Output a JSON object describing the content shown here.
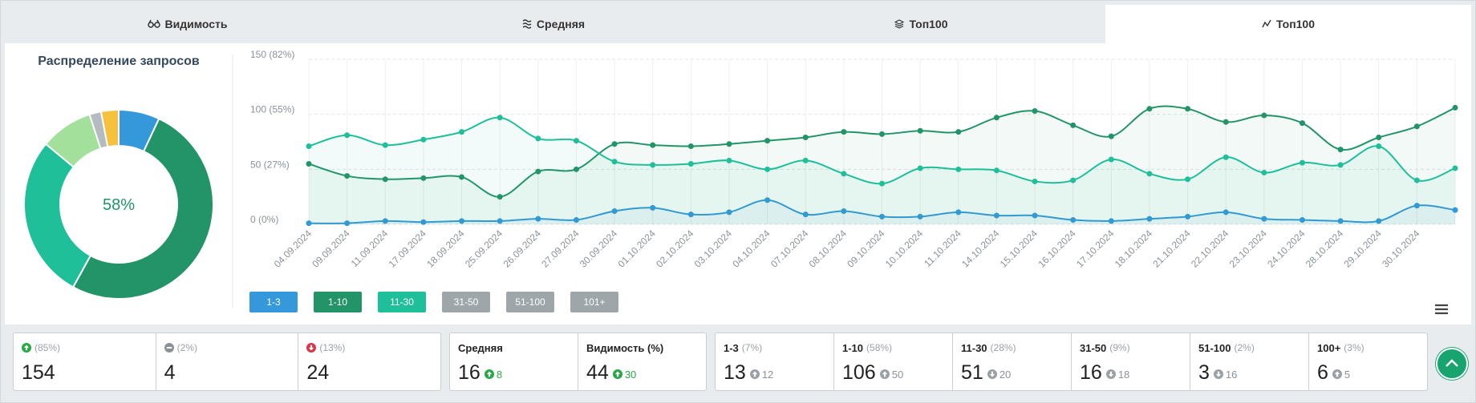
{
  "tabs": [
    "Видимость",
    "Средняя",
    "Топ100",
    "Топ100"
  ],
  "chart_data": [
    {
      "type": "donut",
      "title": "Распределение запросов",
      "center_label": "58%",
      "values": [
        7,
        51,
        28,
        9,
        2,
        3
      ],
      "colors": [
        "#3498db",
        "#229467",
        "#1fbf99",
        "#a3e09c",
        "#b4bcbf",
        "#f6c23e"
      ]
    },
    {
      "type": "line",
      "categories": [
        "04.09.2024",
        "09.09.2024",
        "11.09.2024",
        "17.09.2024",
        "18.09.2024",
        "25.09.2024",
        "26.09.2024",
        "27.09.2024",
        "30.09.2024",
        "01.10.2024",
        "02.10.2024",
        "03.10.2024",
        "04.10.2024",
        "07.10.2024",
        "08.10.2024",
        "09.10.2024",
        "10.10.2024",
        "11.10.2024",
        "14.10.2024",
        "15.10.2024",
        "16.10.2024",
        "17.10.2024",
        "18.10.2024",
        "21.10.2024",
        "22.10.2024",
        "23.10.2024",
        "24.10.2024",
        "28.10.2024",
        "29.10.2024",
        "30.10.2024",
        null
      ],
      "ylim": [
        0,
        150
      ],
      "yticks": [
        {
          "value": 0,
          "label": "0 (0%)"
        },
        {
          "value": 50,
          "label": "50 (27%)"
        },
        {
          "value": 100,
          "label": "100 (55%)"
        },
        {
          "value": 150,
          "label": "150 (82%)"
        }
      ],
      "grid": true,
      "series": [
        {
          "name": "1-3",
          "color": "#3498db",
          "values": [
            1,
            1,
            3,
            2,
            3,
            3,
            5,
            4,
            12,
            15,
            9,
            11,
            22,
            9,
            12,
            7,
            7,
            11,
            8,
            8,
            4,
            3,
            5,
            7,
            11,
            5,
            4,
            3,
            3,
            17,
            13
          ]
        },
        {
          "name": "1-10",
          "color": "#229467",
          "values": [
            55,
            44,
            41,
            42,
            43,
            25,
            48,
            50,
            73,
            72,
            71,
            73,
            76,
            79,
            84,
            82,
            85,
            84,
            97,
            103,
            90,
            80,
            105,
            105,
            93,
            99,
            92,
            68,
            79,
            89,
            106
          ]
        },
        {
          "name": "11-30",
          "color": "#1fbf99",
          "values": [
            71,
            81,
            72,
            77,
            84,
            97,
            78,
            76,
            57,
            54,
            55,
            58,
            50,
            58,
            46,
            37,
            51,
            50,
            49,
            39,
            40,
            59,
            46,
            41,
            61,
            47,
            56,
            54,
            71,
            40,
            51
          ]
        }
      ],
      "legend_disabled": [
        "31-50",
        "51-100",
        "101+"
      ]
    }
  ],
  "summary": [
    {
      "pct": "(85%)",
      "value": 154
    },
    {
      "pct": "(2%)",
      "value": 4
    },
    {
      "pct": "(13%)",
      "value": 24
    }
  ],
  "averages": [
    {
      "label": "Средняя",
      "value": 16,
      "delta": 8
    },
    {
      "label": "Видимость (%)",
      "value": 44,
      "delta": 30
    }
  ],
  "ranges": [
    {
      "label": "1-3",
      "pct": "(7%)",
      "value": 13,
      "delta": 12
    },
    {
      "label": "1-10",
      "pct": "(58%)",
      "value": 106,
      "delta": 50
    },
    {
      "label": "11-30",
      "pct": "(28%)",
      "value": 51,
      "delta": 20
    },
    {
      "label": "31-50",
      "pct": "(9%)",
      "value": 16,
      "delta": 18
    },
    {
      "label": "51-100",
      "pct": "(2%)",
      "value": 3,
      "delta": 16
    },
    {
      "label": "100+",
      "pct": "(3%)",
      "value": 6,
      "delta": 5
    }
  ]
}
